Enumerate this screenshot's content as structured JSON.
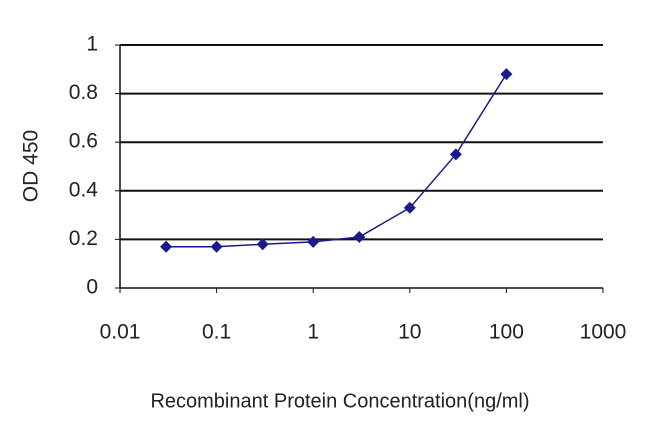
{
  "chart_data": {
    "type": "line",
    "x_label": "Recombinant Protein Concentration(ng/ml)",
    "y_label": "OD 450",
    "x": [
      0.03,
      0.1,
      0.3,
      1,
      3,
      10,
      30,
      100
    ],
    "series": [
      {
        "color": "#1a1a8c",
        "values": [
          0.17,
          0.17,
          0.18,
          0.19,
          0.21,
          0.33,
          0.55,
          0.88
        ]
      }
    ],
    "xscale": "log",
    "xlim": [
      0.01,
      1000
    ],
    "xticks": [
      0.01,
      0.1,
      1,
      10,
      100,
      1000
    ],
    "ylim": [
      0,
      1
    ],
    "yticks": [
      0,
      0.2,
      0.4,
      0.6,
      0.8,
      1
    ],
    "grid": true
  }
}
